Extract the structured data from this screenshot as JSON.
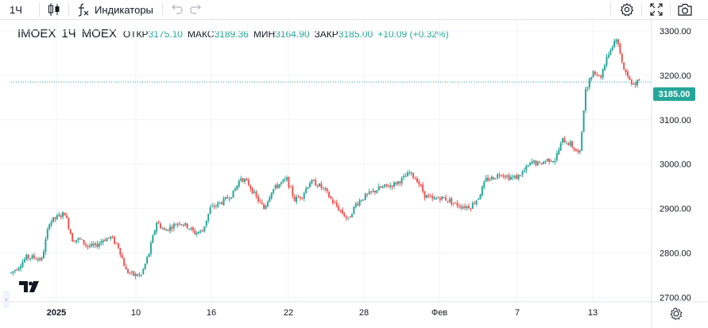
{
  "toolbar": {
    "interval": "1Ч",
    "indicators_label": "Индикаторы",
    "icons": [
      "candles-icon",
      "fx-icon",
      "undo-icon",
      "redo-icon",
      "settings-icon",
      "fullscreen-icon",
      "camera-icon"
    ]
  },
  "legend": {
    "symbol": "IMOEX",
    "interval": "1Ч",
    "exchange": "MOEX",
    "open_label": "ОТКР",
    "open": "3175.10",
    "high_label": "МАКС",
    "high": "3189.36",
    "low_label": "МИН",
    "low": "3164.90",
    "close_label": "ЗАКР",
    "close": "3185.00",
    "change": "+10.09 (+0.32%)"
  },
  "colors": {
    "up": "#26a69a",
    "down": "#ef5350",
    "grid": "#f0f3fa",
    "text": "#131722"
  },
  "chart_data": {
    "type": "candlestick",
    "title": "IMOEX · 1Ч · MOEX",
    "price_axis": {
      "ticks": [
        "3300.00",
        "3200.00",
        "3100.00",
        "3000.00",
        "2900.00",
        "2800.00",
        "2700.00"
      ],
      "ylim": [
        2690,
        3325
      ]
    },
    "time_axis": {
      "ticks": [
        "2025",
        "10",
        "16",
        "22",
        "28",
        "Фев",
        "7",
        "13"
      ]
    },
    "last_price": "3185.00",
    "path": [
      [
        0,
        2755
      ],
      [
        2,
        2770
      ],
      [
        4,
        2790
      ],
      [
        6,
        2790
      ],
      [
        8,
        2785
      ],
      [
        10,
        2870
      ],
      [
        12,
        2880
      ],
      [
        14,
        2890
      ],
      [
        16,
        2830
      ],
      [
        18,
        2830
      ],
      [
        20,
        2815
      ],
      [
        22,
        2815
      ],
      [
        24,
        2830
      ],
      [
        26,
        2835
      ],
      [
        28,
        2815
      ],
      [
        30,
        2760
      ],
      [
        32,
        2750
      ],
      [
        34,
        2750
      ],
      [
        36,
        2800
      ],
      [
        38,
        2870
      ],
      [
        40,
        2850
      ],
      [
        42,
        2860
      ],
      [
        44,
        2870
      ],
      [
        46,
        2860
      ],
      [
        48,
        2845
      ],
      [
        50,
        2850
      ],
      [
        52,
        2900
      ],
      [
        54,
        2910
      ],
      [
        56,
        2920
      ],
      [
        58,
        2935
      ],
      [
        60,
        2970
      ],
      [
        62,
        2955
      ],
      [
        64,
        2925
      ],
      [
        66,
        2900
      ],
      [
        68,
        2940
      ],
      [
        70,
        2955
      ],
      [
        72,
        2965
      ],
      [
        74,
        2920
      ],
      [
        76,
        2930
      ],
      [
        78,
        2960
      ],
      [
        80,
        2955
      ],
      [
        82,
        2940
      ],
      [
        84,
        2915
      ],
      [
        86,
        2895
      ],
      [
        88,
        2875
      ],
      [
        90,
        2910
      ],
      [
        92,
        2925
      ],
      [
        94,
        2935
      ],
      [
        96,
        2945
      ],
      [
        98,
        2950
      ],
      [
        100,
        2955
      ],
      [
        102,
        2965
      ],
      [
        104,
        2980
      ],
      [
        106,
        2965
      ],
      [
        108,
        2930
      ],
      [
        110,
        2920
      ],
      [
        112,
        2925
      ],
      [
        114,
        2920
      ],
      [
        116,
        2910
      ],
      [
        118,
        2905
      ],
      [
        120,
        2905
      ],
      [
        122,
        2925
      ],
      [
        124,
        2965
      ],
      [
        126,
        2970
      ],
      [
        128,
        2980
      ],
      [
        130,
        2970
      ],
      [
        132,
        2970
      ],
      [
        134,
        2985
      ],
      [
        136,
        3005
      ],
      [
        138,
        3000
      ],
      [
        140,
        3010
      ],
      [
        142,
        3010
      ],
      [
        144,
        3055
      ],
      [
        146,
        3045
      ],
      [
        148,
        3025
      ],
      [
        148.5,
        3025
      ],
      [
        150,
        3170
      ],
      [
        152,
        3205
      ],
      [
        154,
        3200
      ],
      [
        156,
        3250
      ],
      [
        158,
        3285
      ],
      [
        160,
        3215
      ],
      [
        162,
        3180
      ],
      [
        164,
        3185
      ]
    ]
  }
}
